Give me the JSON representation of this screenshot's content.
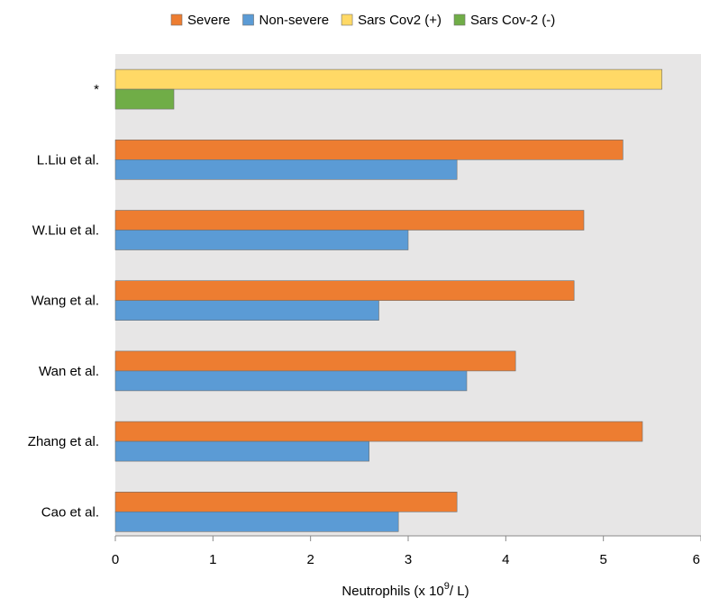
{
  "chart_data": {
    "type": "bar",
    "orientation": "horizontal",
    "categories": [
      "Cao et al.",
      "Zhang et al.",
      "Wan et al.",
      "Wang et al.",
      "W.Liu et al.",
      "L.Liu et al.",
      "*"
    ],
    "series": [
      {
        "name": "Severe",
        "color": "#ED7D31",
        "values": [
          3.5,
          5.4,
          4.1,
          4.7,
          4.8,
          5.2,
          null
        ]
      },
      {
        "name": "Non-severe",
        "color": "#5B9BD5",
        "values": [
          2.9,
          2.6,
          3.6,
          2.7,
          3.0,
          3.5,
          null
        ]
      },
      {
        "name": "Sars Cov2 (+)",
        "color": "#FFD966",
        "values": [
          null,
          null,
          null,
          null,
          null,
          null,
          5.6
        ]
      },
      {
        "name": "Sars Cov-2 (-)",
        "color": "#70AD47",
        "values": [
          null,
          null,
          null,
          null,
          null,
          null,
          0.6
        ]
      }
    ],
    "xlabel": "Neutrophils (x 10",
    "xlabel_superscript": "9",
    "xlabel_suffix": "/ L)",
    "ylabel": "",
    "xlim": [
      0,
      6
    ],
    "xticks": [
      "0",
      "1",
      "2",
      "3",
      "4",
      "5",
      "6"
    ],
    "grid": false,
    "legend_position": "top",
    "plot_background": "#E7E6E6"
  }
}
